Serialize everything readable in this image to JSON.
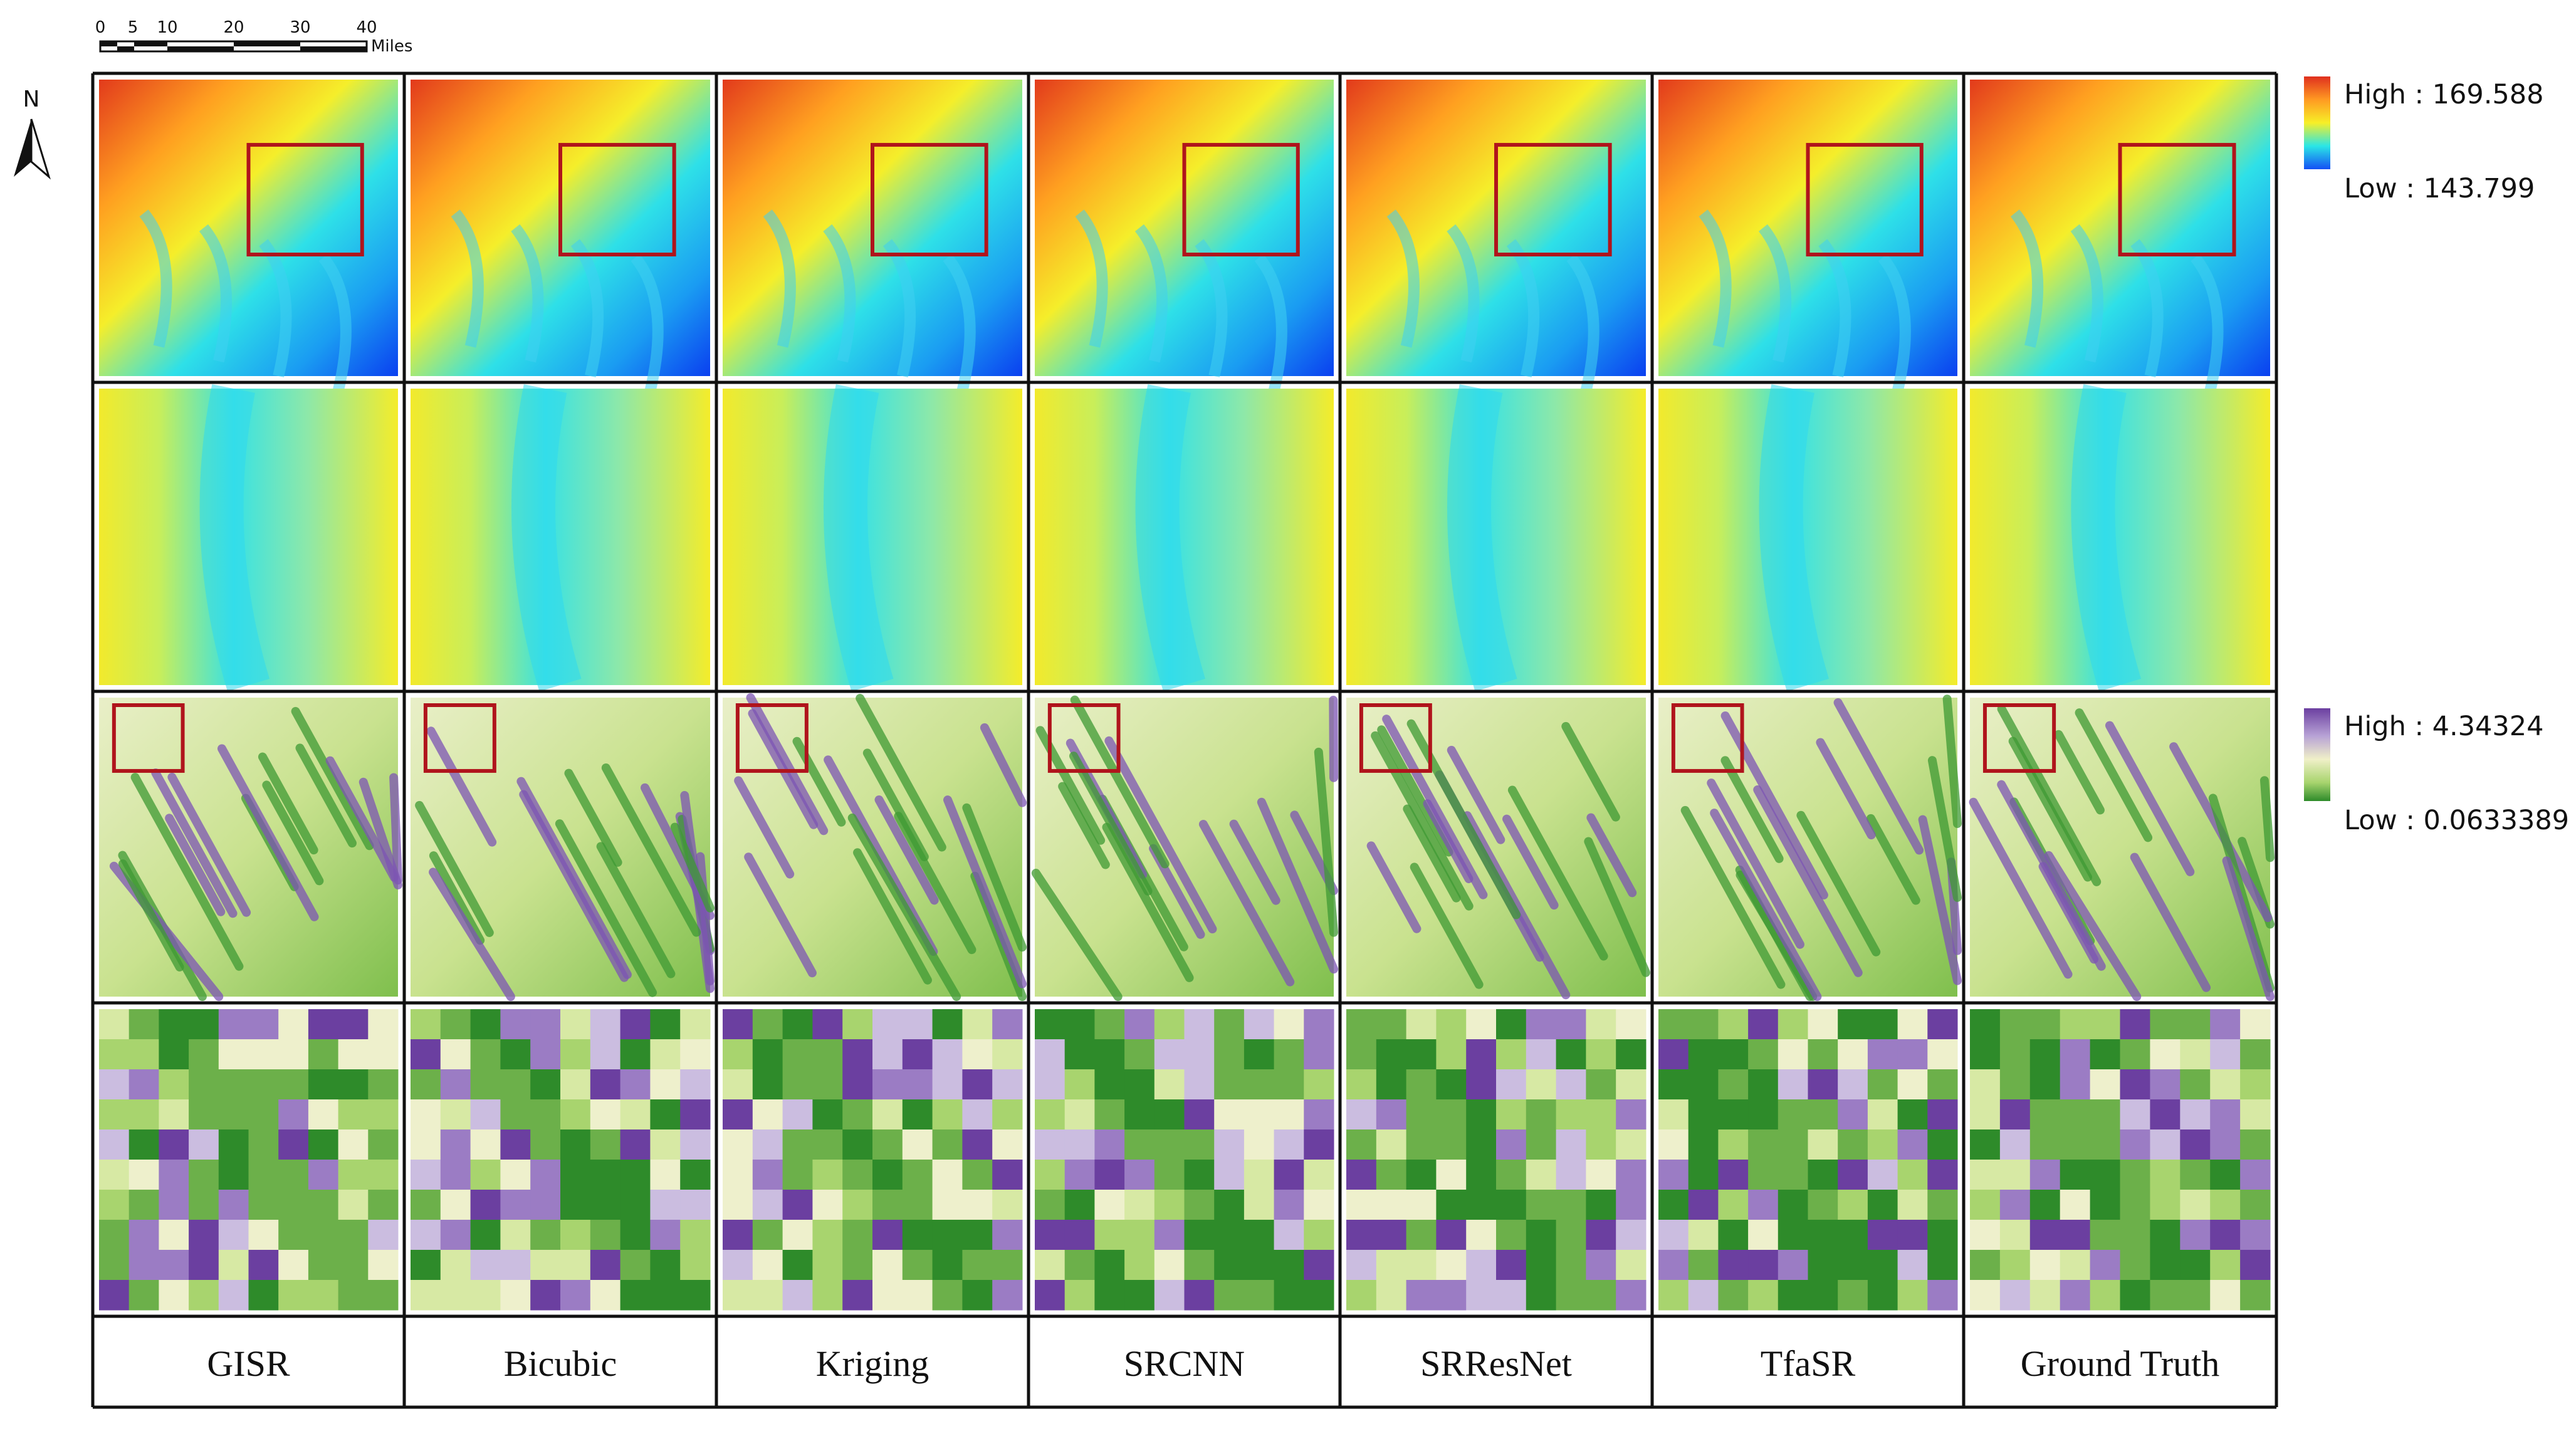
{
  "methods": [
    "GISR",
    "Bicubic",
    "Kriging",
    "SRCNN",
    "SRResNet",
    "TfaSR",
    "Ground Truth"
  ],
  "scale_bar": {
    "ticks": [
      "0",
      "5",
      "10",
      "20",
      "30",
      "40"
    ],
    "unit": "Miles"
  },
  "north_arrow": {
    "label": "N",
    "icon": "north-arrow-icon"
  },
  "legend_elevation": {
    "high": "High : 169.588",
    "low": "Low : 143.799",
    "colors": [
      "#e0301e",
      "#ff9a22",
      "#f7ef27",
      "#2ae6e6",
      "#1450f5"
    ]
  },
  "legend_slope": {
    "high": "High : 4.34324",
    "low": "Low : 0.0633389",
    "colors": [
      "#6b3fa0",
      "#b8a3d6",
      "#f0f0c8",
      "#a8d46e",
      "#2e8b2a"
    ]
  },
  "rows": [
    "elevation",
    "elevation-zoom",
    "slope",
    "slope-zoom"
  ],
  "highlight_color": "#b0141c"
}
